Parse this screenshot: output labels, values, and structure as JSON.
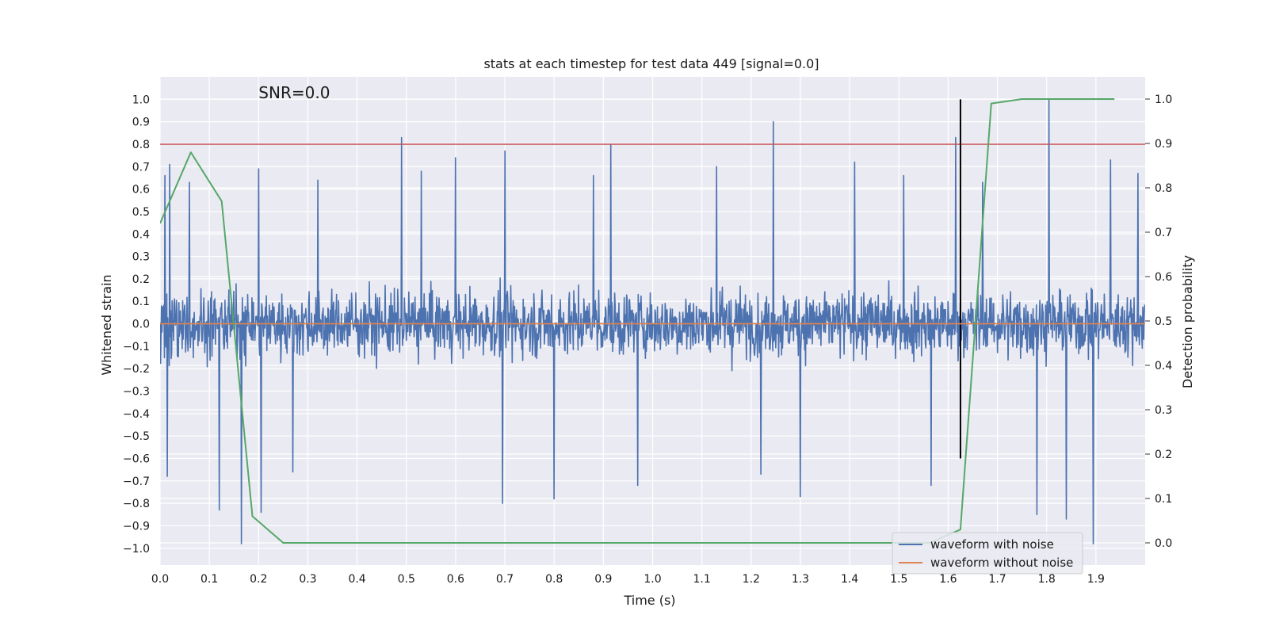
{
  "chart_data": {
    "type": "line",
    "title": "stats at each timestep for test data 449 [signal=0.0]",
    "annotation": "SNR=0.0",
    "xlabel": "Time (s)",
    "ylabel": "Whitened strain",
    "y2label": "Detection probability",
    "xlim": [
      0.0,
      2.0
    ],
    "ylim": [
      -1.075,
      1.1
    ],
    "y2lim": [
      -0.05,
      1.05
    ],
    "x_ticks": [
      "0.0",
      "0.1",
      "0.2",
      "0.3",
      "0.4",
      "0.5",
      "0.6",
      "0.7",
      "0.8",
      "0.9",
      "1.0",
      "1.1",
      "1.2",
      "1.3",
      "1.4",
      "1.5",
      "1.6",
      "1.7",
      "1.8",
      "1.9"
    ],
    "y_ticks": [
      "−1.0",
      "−0.9",
      "−0.8",
      "−0.7",
      "−0.6",
      "−0.5",
      "−0.4",
      "−0.3",
      "−0.2",
      "−0.1",
      "0.0",
      "0.1",
      "0.2",
      "0.3",
      "0.4",
      "0.5",
      "0.6",
      "0.7",
      "0.8",
      "0.9",
      "1.0"
    ],
    "y2_ticks": [
      "0.0",
      "0.1",
      "0.2",
      "0.3",
      "0.4",
      "0.5",
      "0.6",
      "0.7",
      "0.8",
      "0.9",
      "1.0"
    ],
    "grid": true,
    "legend_position": "lower-right",
    "series": [
      {
        "name": "waveform with noise",
        "color": "#4c72b0",
        "axis": "left",
        "sample_rate": 1024,
        "x_start": 0.0,
        "x_end": 2.0,
        "peaks": [
          {
            "x": 0.01,
            "y": 0.66
          },
          {
            "x": 0.02,
            "y": 0.71
          },
          {
            "x": 0.015,
            "y": -0.68
          },
          {
            "x": 0.06,
            "y": 0.63
          },
          {
            "x": 0.12,
            "y": -0.83
          },
          {
            "x": 0.165,
            "y": -0.98
          },
          {
            "x": 0.2,
            "y": 0.69
          },
          {
            "x": 0.205,
            "y": -0.84
          },
          {
            "x": 0.27,
            "y": -0.66
          },
          {
            "x": 0.32,
            "y": 0.64
          },
          {
            "x": 0.49,
            "y": 0.83
          },
          {
            "x": 0.53,
            "y": 0.68
          },
          {
            "x": 0.6,
            "y": 0.74
          },
          {
            "x": 0.695,
            "y": -0.8
          },
          {
            "x": 0.7,
            "y": 0.77
          },
          {
            "x": 0.8,
            "y": -0.78
          },
          {
            "x": 0.88,
            "y": 0.66
          },
          {
            "x": 0.915,
            "y": 0.8
          },
          {
            "x": 0.97,
            "y": -0.72
          },
          {
            "x": 1.13,
            "y": 0.7
          },
          {
            "x": 1.22,
            "y": -0.67
          },
          {
            "x": 1.245,
            "y": 0.9
          },
          {
            "x": 1.3,
            "y": -0.77
          },
          {
            "x": 1.41,
            "y": 0.72
          },
          {
            "x": 1.51,
            "y": 0.66
          },
          {
            "x": 1.565,
            "y": -0.72
          },
          {
            "x": 1.615,
            "y": 0.83
          },
          {
            "x": 1.67,
            "y": 0.63
          },
          {
            "x": 1.78,
            "y": -0.85
          },
          {
            "x": 1.805,
            "y": 1.0
          },
          {
            "x": 1.84,
            "y": -0.87
          },
          {
            "x": 1.895,
            "y": -0.98
          },
          {
            "x": 1.93,
            "y": 0.73
          },
          {
            "x": 1.985,
            "y": 0.67
          }
        ]
      },
      {
        "name": "waveform without noise",
        "color": "#dd8452",
        "axis": "left",
        "x": [
          0.0,
          2.0
        ],
        "y": [
          0.0,
          0.0
        ]
      },
      {
        "color": "#55a868",
        "axis": "right",
        "x": [
          0.0,
          0.0625,
          0.125,
          0.1875,
          0.25,
          0.3125,
          0.375,
          0.4375,
          0.5,
          0.5625,
          0.625,
          0.6875,
          0.75,
          0.8125,
          0.875,
          0.9375,
          1.0,
          1.0625,
          1.125,
          1.1875,
          1.25,
          1.3125,
          1.375,
          1.4375,
          1.5,
          1.5625,
          1.625,
          1.6875,
          1.75,
          1.8125,
          1.875,
          1.9375
        ],
        "y": [
          0.72,
          0.88,
          0.77,
          0.06,
          0.0,
          0.0,
          0.0,
          0.0,
          0.0,
          0.0,
          0.0,
          0.0,
          0.0,
          0.0,
          0.0,
          0.0,
          0.0,
          0.0,
          0.0,
          0.0,
          0.0,
          0.0,
          0.0,
          0.0,
          0.0,
          0.0,
          0.03,
          0.99,
          1.0,
          1.0,
          1.0,
          1.0
        ]
      }
    ],
    "reference_lines": [
      {
        "type": "horizontal",
        "y": 0.8,
        "color": "#c44e52",
        "axis": "left"
      },
      {
        "type": "vertical",
        "x": 1.625,
        "y0": -0.6,
        "y1": 1.0,
        "color": "#000000",
        "axis": "left"
      }
    ]
  }
}
